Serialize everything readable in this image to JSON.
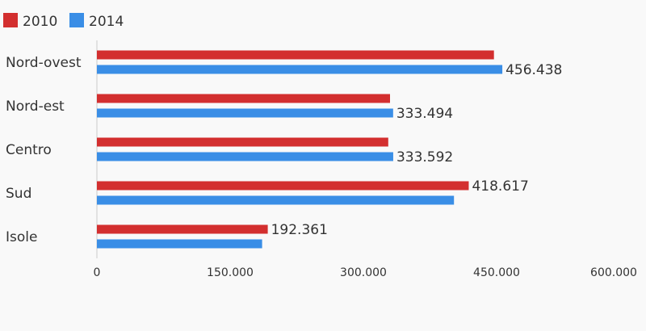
{
  "chart_data": {
    "type": "bar",
    "orientation": "horizontal",
    "categories": [
      "Nord-ovest",
      "Nord-est",
      "Centro",
      "Sud",
      "Isole"
    ],
    "series": [
      {
        "name": "2010",
        "color": "#d32f2f",
        "values": [
          447000,
          330000,
          328000,
          418617,
          192361
        ],
        "labels": [
          "",
          "",
          "",
          "418.617",
          "192.361"
        ]
      },
      {
        "name": "2014",
        "color": "#3a8ee6",
        "values": [
          456438,
          333494,
          333592,
          402000,
          186000
        ],
        "labels": [
          "456.438",
          "333.494",
          "333.592",
          "",
          ""
        ]
      }
    ],
    "x_ticks": [
      {
        "value": 0,
        "label": "0"
      },
      {
        "value": 150000,
        "label": "150.000"
      },
      {
        "value": 300000,
        "label": "300.000"
      },
      {
        "value": 450000,
        "label": "450.000"
      },
      {
        "value": 600000,
        "label": "600.000"
      }
    ],
    "xlim": [
      0,
      600000
    ],
    "legend_position": "top-left",
    "grid": false
  }
}
